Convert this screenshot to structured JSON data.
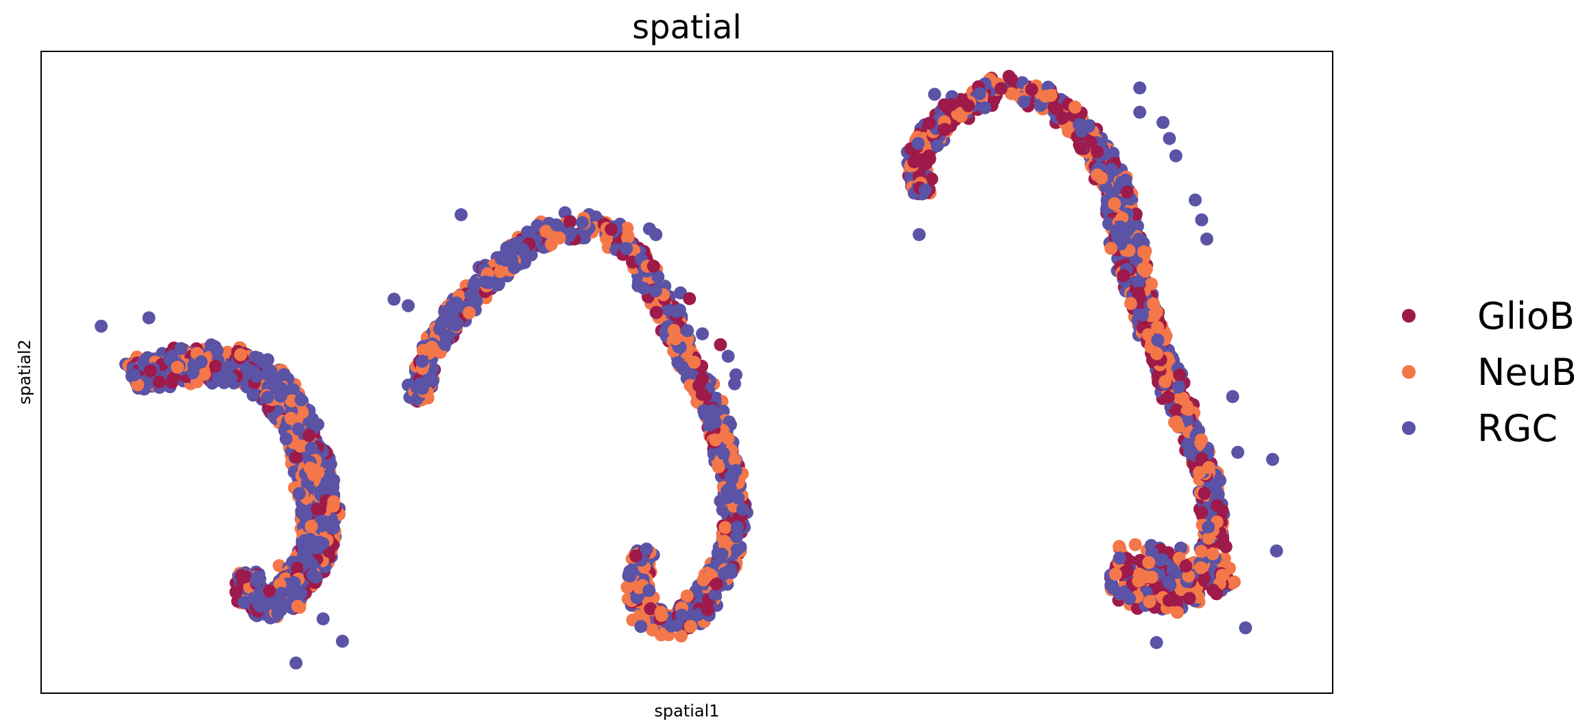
{
  "chart_data": {
    "type": "scatter",
    "title": "spatial",
    "xlabel": "spatial1",
    "ylabel": "spatial2",
    "xlim": [
      0,
      100
    ],
    "ylim": [
      0,
      100
    ],
    "ticks": "none",
    "grid": false,
    "legend_position": "right",
    "legend": [
      {
        "name": "GlioB",
        "color": "#9e1a4a"
      },
      {
        "name": "NeuB",
        "color": "#f4774a"
      },
      {
        "name": "RGC",
        "color": "#5a53a6"
      }
    ],
    "point_color_order": [
      "RGC",
      "NeuB",
      "GlioB"
    ],
    "structures": [
      {
        "path": [
          [
            7.0,
            49.3
          ],
          [
            9.5,
            50.6
          ],
          [
            12.0,
            51.0
          ],
          [
            14.5,
            51.3
          ],
          [
            17.0,
            49.7
          ],
          [
            18.8,
            45.6
          ],
          [
            20.0,
            40.6
          ],
          [
            21.0,
            34.9
          ],
          [
            21.5,
            28.4
          ],
          [
            21.3,
            22.1
          ],
          [
            19.8,
            17.4
          ],
          [
            18.6,
            13.7
          ],
          [
            16.3,
            14.0
          ],
          [
            16.0,
            18.8
          ]
        ],
        "width": [
          2.2,
          2.8,
          2.8,
          2.8,
          2.8,
          2.8,
          2.6,
          2.6,
          2.8,
          2.4,
          2.4,
          2.2,
          2.0,
          1.6
        ],
        "counts": {
          "RGC": 900,
          "NeuB": 380,
          "GlioB": 260
        },
        "outliers": [
          {
            "x": 4.6,
            "y": 57.2,
            "cls": "RGC"
          },
          {
            "x": 8.3,
            "y": 58.5,
            "cls": "RGC"
          },
          {
            "x": 19.7,
            "y": 4.6,
            "cls": "RGC"
          },
          {
            "x": 21.8,
            "y": 11.5,
            "cls": "RGC"
          },
          {
            "x": 23.3,
            "y": 8.0,
            "cls": "RGC"
          },
          {
            "x": 18.4,
            "y": 19.8,
            "cls": "NeuB"
          }
        ]
      },
      {
        "path": [
          [
            29.3,
            45.4
          ],
          [
            29.8,
            52.3
          ],
          [
            32.3,
            60.0
          ],
          [
            35.5,
            66.8
          ],
          [
            38.5,
            71.3
          ],
          [
            41.5,
            73.0
          ],
          [
            44.0,
            72.5
          ],
          [
            45.6,
            69.5
          ],
          [
            47.0,
            64.5
          ],
          [
            48.3,
            60.0
          ],
          [
            49.8,
            53.5
          ],
          [
            51.2,
            47.0
          ],
          [
            52.5,
            41.0
          ],
          [
            53.4,
            34.5
          ],
          [
            53.8,
            28.5
          ],
          [
            53.4,
            22.5
          ],
          [
            52.0,
            16.5
          ],
          [
            50.0,
            11.5
          ],
          [
            48.0,
            10.5
          ],
          [
            46.6,
            12.5
          ],
          [
            46.2,
            17.0
          ],
          [
            46.6,
            22.5
          ]
        ],
        "width": [
          1.4,
          1.6,
          1.8,
          2.0,
          2.2,
          2.2,
          1.6,
          1.6,
          1.6,
          1.6,
          1.6,
          1.6,
          1.6,
          1.6,
          1.6,
          1.8,
          2.0,
          2.2,
          2.2,
          1.6,
          1.6,
          1.4
        ],
        "counts": {
          "RGC": 620,
          "NeuB": 330,
          "GlioB": 200
        },
        "outliers": [
          {
            "x": 32.5,
            "y": 74.6,
            "cls": "RGC"
          },
          {
            "x": 27.3,
            "y": 61.4,
            "cls": "RGC"
          },
          {
            "x": 28.4,
            "y": 60.4,
            "cls": "RGC"
          },
          {
            "x": 28.4,
            "y": 48.0,
            "cls": "RGC"
          },
          {
            "x": 43.9,
            "y": 69.5,
            "cls": "NeuB"
          },
          {
            "x": 47.1,
            "y": 72.4,
            "cls": "RGC"
          },
          {
            "x": 47.6,
            "y": 71.5,
            "cls": "RGC"
          },
          {
            "x": 49.5,
            "y": 62.4,
            "cls": "RGC"
          },
          {
            "x": 50.2,
            "y": 61.5,
            "cls": "GlioB"
          },
          {
            "x": 51.2,
            "y": 56.0,
            "cls": "RGC"
          },
          {
            "x": 52.6,
            "y": 54.3,
            "cls": "GlioB"
          },
          {
            "x": 53.2,
            "y": 52.5,
            "cls": "RGC"
          },
          {
            "x": 53.8,
            "y": 49.6,
            "cls": "RGC"
          },
          {
            "x": 53.7,
            "y": 48.2,
            "cls": "RGC"
          },
          {
            "x": 47.9,
            "y": 11.5,
            "cls": "GlioB"
          },
          {
            "x": 48.0,
            "y": 9.0,
            "cls": "NeuB"
          }
        ]
      },
      {
        "path": [
          [
            68.1,
            77.8
          ],
          [
            67.8,
            83.5
          ],
          [
            69.5,
            88.8
          ],
          [
            72.0,
            92.2
          ],
          [
            74.5,
            94.3
          ],
          [
            77.0,
            93.5
          ],
          [
            79.5,
            90.3
          ],
          [
            81.5,
            85.5
          ],
          [
            83.3,
            78.5
          ],
          [
            84.0,
            71.5
          ],
          [
            84.8,
            64.5
          ],
          [
            86.0,
            56.5
          ],
          [
            87.5,
            48.0
          ],
          [
            89.0,
            41.0
          ],
          [
            90.2,
            34.5
          ],
          [
            90.8,
            27.5
          ],
          [
            90.8,
            21.5
          ],
          [
            89.8,
            17.5
          ],
          [
            88.0,
            15.0
          ],
          [
            86.0,
            14.0
          ],
          [
            84.2,
            16.5
          ],
          [
            83.4,
            20.0
          ],
          [
            84.5,
            20.7
          ],
          [
            86.5,
            20.4
          ],
          [
            88.5,
            20.0
          ],
          [
            90.5,
            19.0
          ],
          [
            92.0,
            16.5
          ]
        ],
        "width": [
          1.2,
          1.6,
          1.8,
          2.0,
          2.2,
          1.8,
          1.8,
          1.8,
          2.0,
          2.2,
          2.0,
          1.8,
          1.6,
          1.6,
          1.6,
          1.6,
          1.6,
          2.2,
          2.6,
          2.6,
          2.6,
          2.2,
          2.4,
          2.4,
          2.4,
          2.4,
          1.8
        ],
        "counts": {
          "RGC": 440,
          "NeuB": 400,
          "GlioB": 460
        },
        "outliers": [
          {
            "x": 68.0,
            "y": 71.5,
            "cls": "RGC"
          },
          {
            "x": 69.2,
            "y": 93.4,
            "cls": "RGC"
          },
          {
            "x": 85.1,
            "y": 94.4,
            "cls": "RGC"
          },
          {
            "x": 85.1,
            "y": 90.6,
            "cls": "RGC"
          },
          {
            "x": 86.9,
            "y": 89.0,
            "cls": "RGC"
          },
          {
            "x": 87.4,
            "y": 86.5,
            "cls": "RGC"
          },
          {
            "x": 87.9,
            "y": 83.8,
            "cls": "RGC"
          },
          {
            "x": 89.4,
            "y": 76.9,
            "cls": "RGC"
          },
          {
            "x": 89.9,
            "y": 73.8,
            "cls": "RGC"
          },
          {
            "x": 90.3,
            "y": 70.8,
            "cls": "RGC"
          },
          {
            "x": 92.3,
            "y": 46.2,
            "cls": "RGC"
          },
          {
            "x": 92.7,
            "y": 37.5,
            "cls": "RGC"
          },
          {
            "x": 95.4,
            "y": 36.4,
            "cls": "RGC"
          },
          {
            "x": 95.7,
            "y": 22.1,
            "cls": "RGC"
          },
          {
            "x": 93.3,
            "y": 10.1,
            "cls": "RGC"
          },
          {
            "x": 86.4,
            "y": 7.8,
            "cls": "RGC"
          }
        ]
      }
    ]
  }
}
